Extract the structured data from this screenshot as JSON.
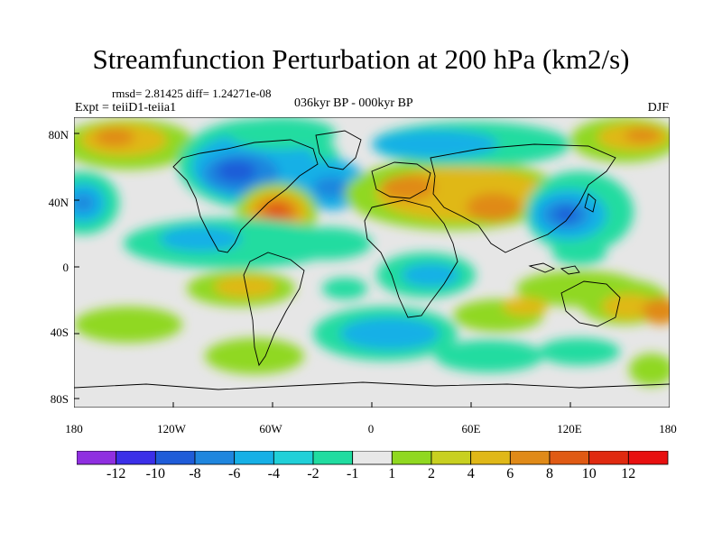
{
  "title": "Streamfunction Perturbation at 200 hPa (km2/s)",
  "stats": "rmsd= 2.81425 diff= 1.24271e-08",
  "experiment": "Expt = teiiD1-teiia1",
  "period": "036kyr BP - 000kyr BP",
  "season": "DJF",
  "lat_labels": [
    "80N",
    "40N",
    "0",
    "40S",
    "80S"
  ],
  "lon_labels": [
    "180",
    "120W",
    "60W",
    "0",
    "60E",
    "120E",
    "180"
  ],
  "colorbar": {
    "labels": [
      "-12",
      "-10",
      "-8",
      "-6",
      "-4",
      "-2",
      "-1",
      "1",
      "2",
      "4",
      "6",
      "8",
      "10",
      "12"
    ],
    "colors": [
      "#8f2fe0",
      "#3b2fe8",
      "#1f5cd8",
      "#1f86de",
      "#16b0e6",
      "#20d0d8",
      "#20dca0",
      "#e8e8e8",
      "#90d820",
      "#c8d020",
      "#e0b818",
      "#e08a18",
      "#e05a14",
      "#e02a10",
      "#e81010"
    ]
  },
  "colors": {
    "background": "#e6e6e6",
    "positive_weak": "#90d820",
    "positive_mid": "#e0b818",
    "positive_strong": "#e05a14",
    "negative_weak": "#20dca0",
    "negative_mid": "#16b0e6",
    "negative_strong": "#1f5cd8"
  }
}
